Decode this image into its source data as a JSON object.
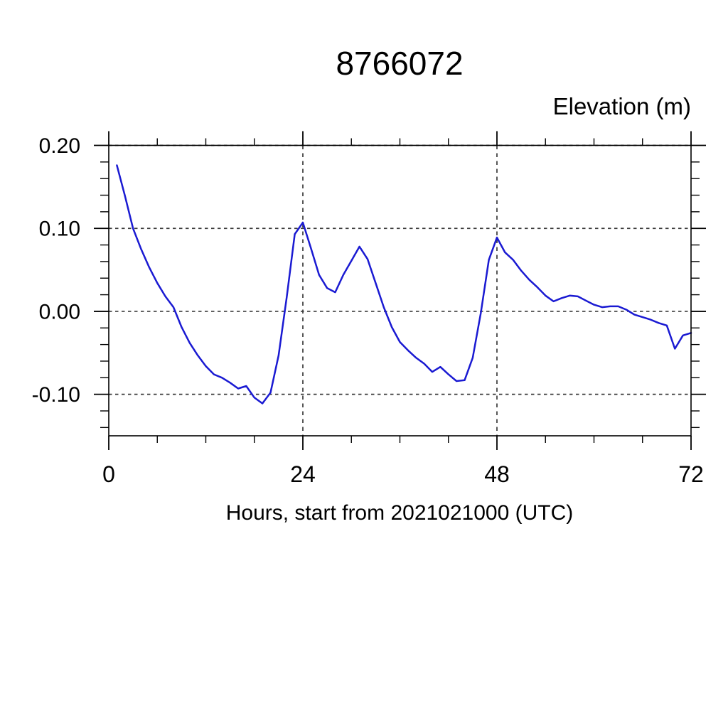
{
  "chart_data": {
    "type": "line",
    "title": "8766072",
    "ylabel": "Elevation (m)",
    "xlabel": "Hours, start from 2021021000 (UTC)",
    "xlim": [
      0,
      72
    ],
    "ylim": [
      -0.15,
      0.2
    ],
    "x_ticks_major": [
      0,
      24,
      48,
      72
    ],
    "x_tick_labels": [
      "0",
      "24",
      "48",
      "72"
    ],
    "x_minor_interval": 6,
    "y_ticks_major": [
      0.2,
      0.1,
      0.0,
      -0.1
    ],
    "y_tick_labels": [
      "0.20",
      "0.10",
      "0.00",
      "-0.10"
    ],
    "y_minor_interval": 0.02,
    "grid_x": [
      24,
      48
    ],
    "grid_y": [
      0.2,
      0.1,
      0.0,
      -0.1
    ],
    "grid_style": "dashed",
    "legend": "none",
    "line_color": "#1a1ad2",
    "axis_color": "#000000",
    "grid_color": "#3a3a3a",
    "series": [
      {
        "name": "elevation",
        "x": [
          1,
          2,
          3,
          4,
          5,
          6,
          7,
          8,
          9,
          10,
          11,
          12,
          13,
          14,
          15,
          16,
          17,
          18,
          19,
          20,
          21,
          22,
          23,
          24,
          25,
          26,
          27,
          28,
          29,
          30,
          31,
          32,
          33,
          34,
          35,
          36,
          37,
          38,
          39,
          40,
          41,
          42,
          43,
          44,
          45,
          46,
          47,
          48,
          49,
          50,
          51,
          52,
          53,
          54,
          55,
          56,
          57,
          58,
          59,
          60,
          61,
          62,
          63,
          64,
          65,
          66,
          67,
          68,
          69,
          70,
          71,
          72
        ],
        "y": [
          0.176,
          0.139,
          0.1,
          0.075,
          0.053,
          0.034,
          0.018,
          0.005,
          -0.019,
          -0.038,
          -0.053,
          -0.066,
          -0.076,
          -0.08,
          -0.086,
          -0.093,
          -0.09,
          -0.104,
          -0.111,
          -0.098,
          -0.053,
          0.017,
          0.093,
          0.107,
          0.076,
          0.044,
          0.028,
          0.023,
          0.044,
          0.061,
          0.078,
          0.063,
          0.034,
          0.005,
          -0.019,
          -0.037,
          -0.047,
          -0.056,
          -0.063,
          -0.073,
          -0.067,
          -0.076,
          -0.084,
          -0.083,
          -0.056,
          -0.002,
          0.062,
          0.089,
          0.071,
          0.062,
          0.049,
          0.038,
          0.029,
          0.019,
          0.012,
          0.016,
          0.019,
          0.018,
          0.013,
          0.008,
          0.005,
          0.006,
          0.006,
          0.002,
          -0.004,
          -0.007,
          -0.01,
          -0.014,
          -0.017,
          -0.045,
          -0.029,
          -0.026
        ]
      }
    ]
  }
}
